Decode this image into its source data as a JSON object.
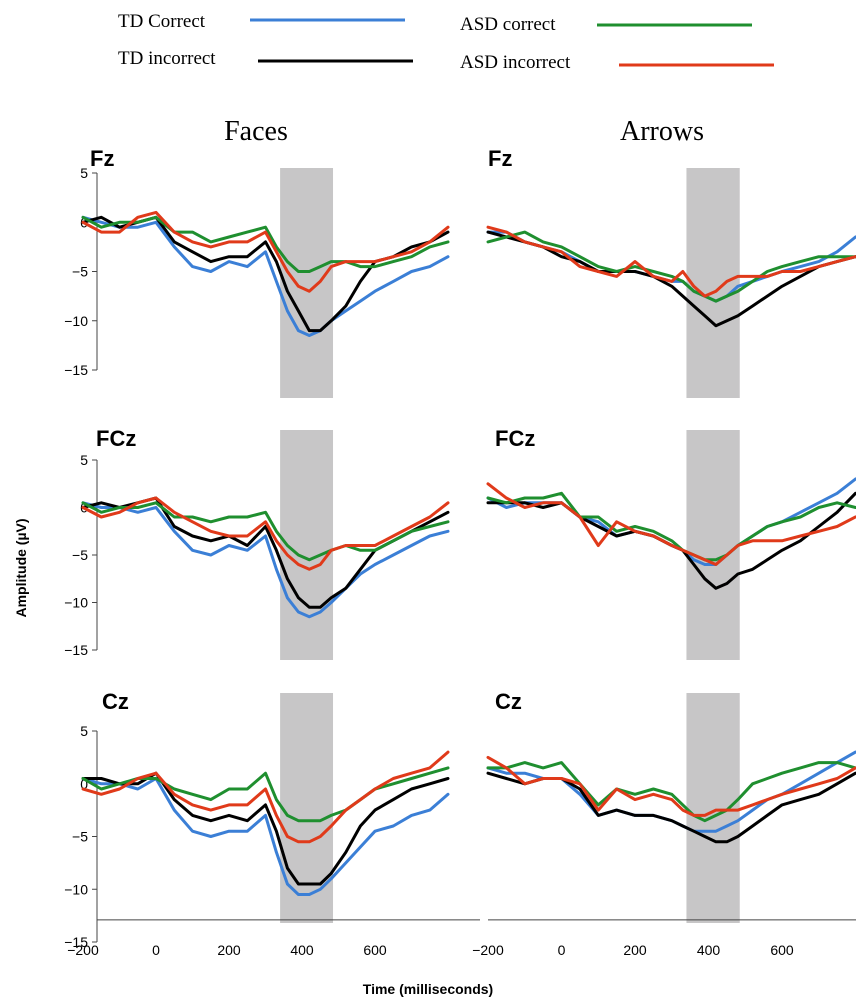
{
  "legend": [
    {
      "label": "TD Correct",
      "color": "#3b7fd6"
    },
    {
      "label": "TD incorrect",
      "color": "#000000"
    },
    {
      "label": "ASD correct",
      "color": "#1f8f2f"
    },
    {
      "label": "ASD incorrect",
      "color": "#e03a1a"
    }
  ],
  "shade_color": "#bdbcbd",
  "chart_data": {
    "type": "line",
    "xlabel": "Time (milliseconds)",
    "ylabel": "Amplitude (µV)",
    "xlim": [
      -200,
      800
    ],
    "ylim": [
      -15,
      5
    ],
    "xticks": [
      -200,
      0,
      200,
      400,
      600
    ],
    "yticks": [
      5,
      0,
      -5,
      -10,
      -15
    ],
    "shaded_window_ms": [
      340,
      485
    ],
    "columns": [
      "Faces",
      "Arrows"
    ],
    "electrodes": [
      "Fz",
      "FCz",
      "Cz"
    ],
    "series_names": [
      "TD Correct",
      "TD incorrect",
      "ASD correct",
      "ASD incorrect"
    ],
    "x": [
      -200,
      -150,
      -100,
      -50,
      0,
      50,
      100,
      150,
      200,
      250,
      300,
      330,
      360,
      390,
      420,
      450,
      480,
      520,
      560,
      600,
      650,
      700,
      750,
      800
    ],
    "panels": [
      {
        "column": "Faces",
        "electrode": "Fz",
        "series": [
          {
            "name": "TD Correct",
            "values": [
              0.5,
              0,
              -0.5,
              -0.5,
              0,
              -2.5,
              -4.5,
              -5,
              -4,
              -4.5,
              -3,
              -6,
              -9,
              -11,
              -11.5,
              -11,
              -10,
              -9,
              -8,
              -7,
              -6,
              -5,
              -4.5,
              -3.5
            ]
          },
          {
            "name": "TD incorrect",
            "values": [
              0,
              0.5,
              -0.5,
              0,
              0.5,
              -2,
              -3,
              -4,
              -3.5,
              -3.5,
              -2,
              -4,
              -7,
              -9,
              -11,
              -11,
              -10,
              -8.5,
              -6,
              -4,
              -3.5,
              -2.5,
              -2,
              -1
            ]
          },
          {
            "name": "ASD correct",
            "values": [
              0.5,
              -0.5,
              0,
              0,
              0.5,
              -1,
              -1,
              -2,
              -1.5,
              -1,
              -0.5,
              -2.5,
              -4,
              -5,
              -5,
              -4.5,
              -4,
              -4,
              -4.5,
              -4.5,
              -4,
              -3.5,
              -2.5,
              -2
            ]
          },
          {
            "name": "ASD incorrect",
            "values": [
              0,
              -1,
              -1,
              0.5,
              1,
              -1,
              -2,
              -2.5,
              -2,
              -2,
              -1,
              -3,
              -5,
              -6.5,
              -7,
              -6,
              -4.5,
              -4,
              -4,
              -4,
              -3.5,
              -3,
              -2,
              -0.5
            ]
          }
        ]
      },
      {
        "column": "Arrows",
        "electrode": "Fz",
        "series": [
          {
            "name": "TD Correct",
            "values": [
              -1,
              -1,
              -2,
              -2.5,
              -3,
              -4,
              -5,
              -5,
              -5,
              -5.5,
              -6,
              -6,
              -7,
              -7.5,
              -8,
              -7.5,
              -6.5,
              -6,
              -5.5,
              -5,
              -4.5,
              -4,
              -3,
              -1.5
            ]
          },
          {
            "name": "TD incorrect",
            "values": [
              -1,
              -1.5,
              -2,
              -2.5,
              -3.5,
              -4,
              -5,
              -5,
              -5,
              -5.5,
              -6.5,
              -7.5,
              -8.5,
              -9.5,
              -10.5,
              -10,
              -9.5,
              -8.5,
              -7.5,
              -6.5,
              -5.5,
              -4.5,
              -4,
              -3.5
            ]
          },
          {
            "name": "ASD correct",
            "values": [
              -2,
              -1.5,
              -1,
              -2,
              -2.5,
              -3.5,
              -4.5,
              -5,
              -4.5,
              -5,
              -5.5,
              -6,
              -7,
              -7.5,
              -8,
              -7.5,
              -7,
              -6,
              -5,
              -4.5,
              -4,
              -3.5,
              -3.5,
              -3.5
            ]
          },
          {
            "name": "ASD incorrect",
            "values": [
              -0.5,
              -1,
              -2,
              -2.5,
              -3,
              -4.5,
              -5,
              -5.5,
              -4,
              -5.5,
              -6,
              -5,
              -6.5,
              -7.5,
              -7,
              -6,
              -5.5,
              -5.5,
              -5.5,
              -5,
              -5,
              -4.5,
              -4,
              -3.5
            ]
          }
        ]
      },
      {
        "column": "Faces",
        "electrode": "FCz",
        "series": [
          {
            "name": "TD Correct",
            "values": [
              0.5,
              0,
              0,
              -0.5,
              0,
              -2.5,
              -4.5,
              -5,
              -4,
              -4.5,
              -3,
              -6.5,
              -9.5,
              -11,
              -11.5,
              -11,
              -10,
              -8.5,
              -7,
              -6,
              -5,
              -4,
              -3,
              -2.5
            ]
          },
          {
            "name": "TD incorrect",
            "values": [
              0,
              0.5,
              0,
              0.5,
              1,
              -2,
              -3,
              -3.5,
              -3,
              -4,
              -2,
              -4.5,
              -7.5,
              -9.5,
              -10.5,
              -10.5,
              -9.5,
              -8.5,
              -6.5,
              -4.5,
              -3.5,
              -2.5,
              -1.5,
              -0.5
            ]
          },
          {
            "name": "ASD correct",
            "values": [
              0.5,
              -0.5,
              0,
              0,
              0.5,
              -1,
              -1,
              -1.5,
              -1,
              -1,
              -0.5,
              -2.5,
              -4,
              -5,
              -5.5,
              -5,
              -4.5,
              -4,
              -4.5,
              -4.5,
              -3.5,
              -2.5,
              -2,
              -1.5
            ]
          },
          {
            "name": "ASD incorrect",
            "values": [
              0,
              -1,
              -0.5,
              0.5,
              1,
              -0.5,
              -1.5,
              -2.5,
              -3,
              -3,
              -1.5,
              -3.5,
              -5,
              -6,
              -6.5,
              -6,
              -4.5,
              -4,
              -4,
              -4,
              -3,
              -2,
              -1,
              0.5
            ]
          }
        ]
      },
      {
        "column": "Arrows",
        "electrode": "FCz",
        "series": [
          {
            "name": "TD Correct",
            "values": [
              1,
              0,
              0.5,
              0.5,
              0.5,
              -1,
              -1.5,
              -3,
              -2.5,
              -3,
              -4,
              -4.5,
              -5.5,
              -6,
              -6,
              -5,
              -4,
              -3,
              -2,
              -1.5,
              -0.5,
              0.5,
              1.5,
              3
            ]
          },
          {
            "name": "TD incorrect",
            "values": [
              0.5,
              0.5,
              0.5,
              0,
              0.5,
              -1,
              -2,
              -3,
              -2.5,
              -3,
              -4,
              -4.5,
              -6,
              -7.5,
              -8.5,
              -8,
              -7,
              -6.5,
              -5.5,
              -4.5,
              -3.5,
              -2,
              -0.5,
              1.5
            ]
          },
          {
            "name": "ASD correct",
            "values": [
              1,
              0.5,
              1,
              1,
              1.5,
              -1,
              -1,
              -2.5,
              -2,
              -2.5,
              -3.5,
              -4.5,
              -5,
              -5.5,
              -5.5,
              -5,
              -4,
              -3,
              -2,
              -1.5,
              -1,
              0,
              0.5,
              0
            ]
          },
          {
            "name": "ASD incorrect",
            "values": [
              2.5,
              1,
              0,
              0.5,
              0.5,
              -1,
              -4,
              -1.5,
              -2.5,
              -3,
              -4,
              -4.5,
              -5,
              -5.5,
              -6,
              -5,
              -4,
              -3.5,
              -3.5,
              -3.5,
              -3,
              -2.5,
              -2,
              -1
            ]
          }
        ]
      },
      {
        "column": "Faces",
        "electrode": "Cz",
        "series": [
          {
            "name": "TD Correct",
            "values": [
              0.5,
              0,
              0,
              -0.5,
              0.5,
              -2.5,
              -4.5,
              -5,
              -4.5,
              -4.5,
              -3,
              -6.5,
              -9.5,
              -10.5,
              -10.5,
              -10,
              -9,
              -7.5,
              -6,
              -4.5,
              -4,
              -3,
              -2.5,
              -1
            ]
          },
          {
            "name": "TD incorrect",
            "values": [
              0.5,
              0.5,
              0,
              0,
              1,
              -1.5,
              -3,
              -3.5,
              -3,
              -3.5,
              -2,
              -4.5,
              -8,
              -9.5,
              -9.5,
              -9.5,
              -8.5,
              -6.5,
              -4,
              -2.5,
              -1.5,
              -0.5,
              0,
              0.5
            ]
          },
          {
            "name": "ASD correct",
            "values": [
              0.5,
              -0.5,
              0,
              0.5,
              0.5,
              -0.5,
              -1,
              -1.5,
              -0.5,
              -0.5,
              1,
              -1.5,
              -3,
              -3.5,
              -3.5,
              -3.5,
              -3,
              -2.5,
              -1.5,
              -0.5,
              0,
              0.5,
              1,
              1.5
            ]
          },
          {
            "name": "ASD incorrect",
            "values": [
              -0.5,
              -1,
              -0.5,
              0.5,
              1,
              -1,
              -2,
              -2.5,
              -2,
              -2,
              -0.5,
              -3,
              -5,
              -5.5,
              -5.5,
              -5,
              -4,
              -2.5,
              -1.5,
              -0.5,
              0.5,
              1,
              1.5,
              3
            ]
          }
        ]
      },
      {
        "column": "Arrows",
        "electrode": "Cz",
        "series": [
          {
            "name": "TD Correct",
            "values": [
              1.5,
              1,
              1,
              0.5,
              0.5,
              -1,
              -3,
              -2.5,
              -3,
              -3,
              -3.5,
              -4,
              -4.5,
              -4.5,
              -4.5,
              -4,
              -3.5,
              -2.5,
              -1.5,
              -1,
              0,
              1,
              2,
              3
            ]
          },
          {
            "name": "TD incorrect",
            "values": [
              1,
              0.5,
              0,
              0.5,
              0.5,
              -0.5,
              -3,
              -2.5,
              -3,
              -3,
              -3.5,
              -4,
              -4.5,
              -5,
              -5.5,
              -5.5,
              -5,
              -4,
              -3,
              -2,
              -1.5,
              -1,
              0,
              1
            ]
          },
          {
            "name": "ASD correct",
            "values": [
              1.5,
              1.5,
              2,
              1.5,
              2,
              0,
              -2,
              -0.5,
              -1,
              -0.5,
              -1,
              -2,
              -3,
              -3.5,
              -3,
              -2.5,
              -1.5,
              0,
              0.5,
              1,
              1.5,
              2,
              2,
              1.5
            ]
          },
          {
            "name": "ASD incorrect",
            "values": [
              2.5,
              1.5,
              0,
              0.5,
              0.5,
              0,
              -2.5,
              -0.5,
              -1.5,
              -1,
              -1.5,
              -2.5,
              -3,
              -3,
              -2.5,
              -2.5,
              -2.5,
              -2,
              -1.5,
              -1,
              -0.5,
              0,
              0.5,
              1.5
            ]
          }
        ]
      }
    ]
  }
}
